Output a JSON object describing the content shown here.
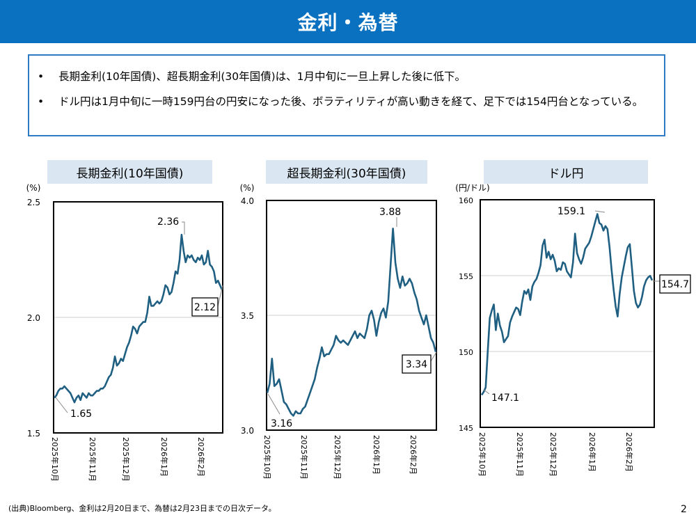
{
  "header": {
    "title": "金利・為替"
  },
  "summary": {
    "bullet": "•",
    "items": [
      "長期金利(10年国債)、超長期金利(30年国債)は、1月中旬に一旦上昇した後に低下。",
      "ドル円は1月中旬に一時159円台の円安になった後、ボラティリティが高い動きを経て、足下では154円台となっている。"
    ]
  },
  "footer": {
    "note": "(出典)Bloomberg、金利は2月20日まで、為替は2月23日までの日次データ。",
    "page": "2"
  },
  "chart_data": [
    {
      "type": "line",
      "title": "長期金利(10年国債)",
      "ylabel": "(%)",
      "ylim": [
        1.5,
        2.5
      ],
      "yticks": [
        "2.5",
        "2.0",
        "1.5"
      ],
      "xticks": [
        "2025年10月",
        "2025年11月",
        "2025年12月",
        "2026年1月",
        "2026年2月"
      ],
      "grid": true,
      "annotations": [
        {
          "text": "2.36",
          "boxed": false
        },
        {
          "text": "1.65",
          "boxed": false
        },
        {
          "text": "2.12",
          "boxed": true
        }
      ],
      "color": "#1f5f82",
      "values": [
        1.65,
        1.66,
        1.68,
        1.69,
        1.69,
        1.7,
        1.69,
        1.68,
        1.67,
        1.65,
        1.63,
        1.65,
        1.66,
        1.64,
        1.67,
        1.66,
        1.65,
        1.67,
        1.66,
        1.66,
        1.67,
        1.68,
        1.68,
        1.69,
        1.69,
        1.7,
        1.72,
        1.74,
        1.75,
        1.78,
        1.83,
        1.79,
        1.8,
        1.82,
        1.81,
        1.84,
        1.87,
        1.89,
        1.92,
        1.96,
        1.95,
        1.93,
        1.96,
        1.97,
        1.98,
        1.98,
        2.02,
        2.09,
        2.05,
        2.05,
        2.06,
        2.07,
        2.06,
        2.07,
        2.1,
        2.14,
        2.13,
        2.1,
        2.11,
        2.15,
        2.2,
        2.19,
        2.25,
        2.36,
        2.29,
        2.24,
        2.27,
        2.26,
        2.27,
        2.25,
        2.24,
        2.26,
        2.25,
        2.27,
        2.23,
        2.24,
        2.29,
        2.23,
        2.22,
        2.2,
        2.15,
        2.16,
        2.14,
        2.12
      ]
    },
    {
      "type": "line",
      "title": "超長期金利(30年国債)",
      "ylabel": "(%)",
      "ylim": [
        3.0,
        4.0
      ],
      "yticks": [
        "4.0",
        "3.5",
        "3.0"
      ],
      "xticks": [
        "2025年10月",
        "2025年11月",
        "2025年12月",
        "2026年1月",
        "2026年2月"
      ],
      "grid": true,
      "annotations": [
        {
          "text": "3.88",
          "boxed": false
        },
        {
          "text": "3.16",
          "boxed": false
        },
        {
          "text": "3.34",
          "boxed": true
        }
      ],
      "color": "#1f5f82",
      "values": [
        3.16,
        3.2,
        3.31,
        3.19,
        3.2,
        3.22,
        3.17,
        3.12,
        3.11,
        3.09,
        3.07,
        3.06,
        3.08,
        3.07,
        3.07,
        3.09,
        3.1,
        3.13,
        3.16,
        3.19,
        3.22,
        3.27,
        3.31,
        3.36,
        3.32,
        3.33,
        3.33,
        3.35,
        3.37,
        3.41,
        3.39,
        3.38,
        3.39,
        3.38,
        3.37,
        3.39,
        3.41,
        3.43,
        3.4,
        3.42,
        3.41,
        3.4,
        3.44,
        3.5,
        3.52,
        3.48,
        3.41,
        3.47,
        3.51,
        3.53,
        3.49,
        3.56,
        3.72,
        3.88,
        3.73,
        3.66,
        3.62,
        3.67,
        3.63,
        3.64,
        3.66,
        3.64,
        3.6,
        3.57,
        3.52,
        3.49,
        3.46,
        3.5,
        3.45,
        3.4,
        3.38,
        3.34
      ]
    },
    {
      "type": "line",
      "title": "ドル円",
      "ylabel": "(円/ドル)",
      "ylim": [
        145,
        160
      ],
      "yticks": [
        "160",
        "155",
        "150",
        "145"
      ],
      "xticks": [
        "2025年10月",
        "2025年11月",
        "2025年12月",
        "2026年1月",
        "2026年2月"
      ],
      "grid": true,
      "annotations": [
        {
          "text": "159.1",
          "boxed": false
        },
        {
          "text": "147.1",
          "boxed": false
        },
        {
          "text": "154.7",
          "boxed": true
        }
      ],
      "color": "#1f5f82",
      "values": [
        147.1,
        147.3,
        147.6,
        150.0,
        152.2,
        152.7,
        153.1,
        151.4,
        152.5,
        151.7,
        151.3,
        150.6,
        150.8,
        151.0,
        151.9,
        152.3,
        152.6,
        152.9,
        152.8,
        152.4,
        153.3,
        154.0,
        153.8,
        154.1,
        153.4,
        154.3,
        154.6,
        154.8,
        155.2,
        155.7,
        157.0,
        157.4,
        156.2,
        156.6,
        156.1,
        156.4,
        156.0,
        155.3,
        155.5,
        155.4,
        155.9,
        155.8,
        155.3,
        155.1,
        154.9,
        155.9,
        157.8,
        156.5,
        156.1,
        155.8,
        156.2,
        156.8,
        157.0,
        157.2,
        157.6,
        158.1,
        158.6,
        159.1,
        158.5,
        158.4,
        158.0,
        158.3,
        158.1,
        156.9,
        155.4,
        154.1,
        153.0,
        152.3,
        153.8,
        154.9,
        155.6,
        156.3,
        156.9,
        157.1,
        155.6,
        154.0,
        153.2,
        152.9,
        153.1,
        153.6,
        154.3,
        154.7,
        154.9,
        155.0,
        154.7
      ]
    }
  ]
}
